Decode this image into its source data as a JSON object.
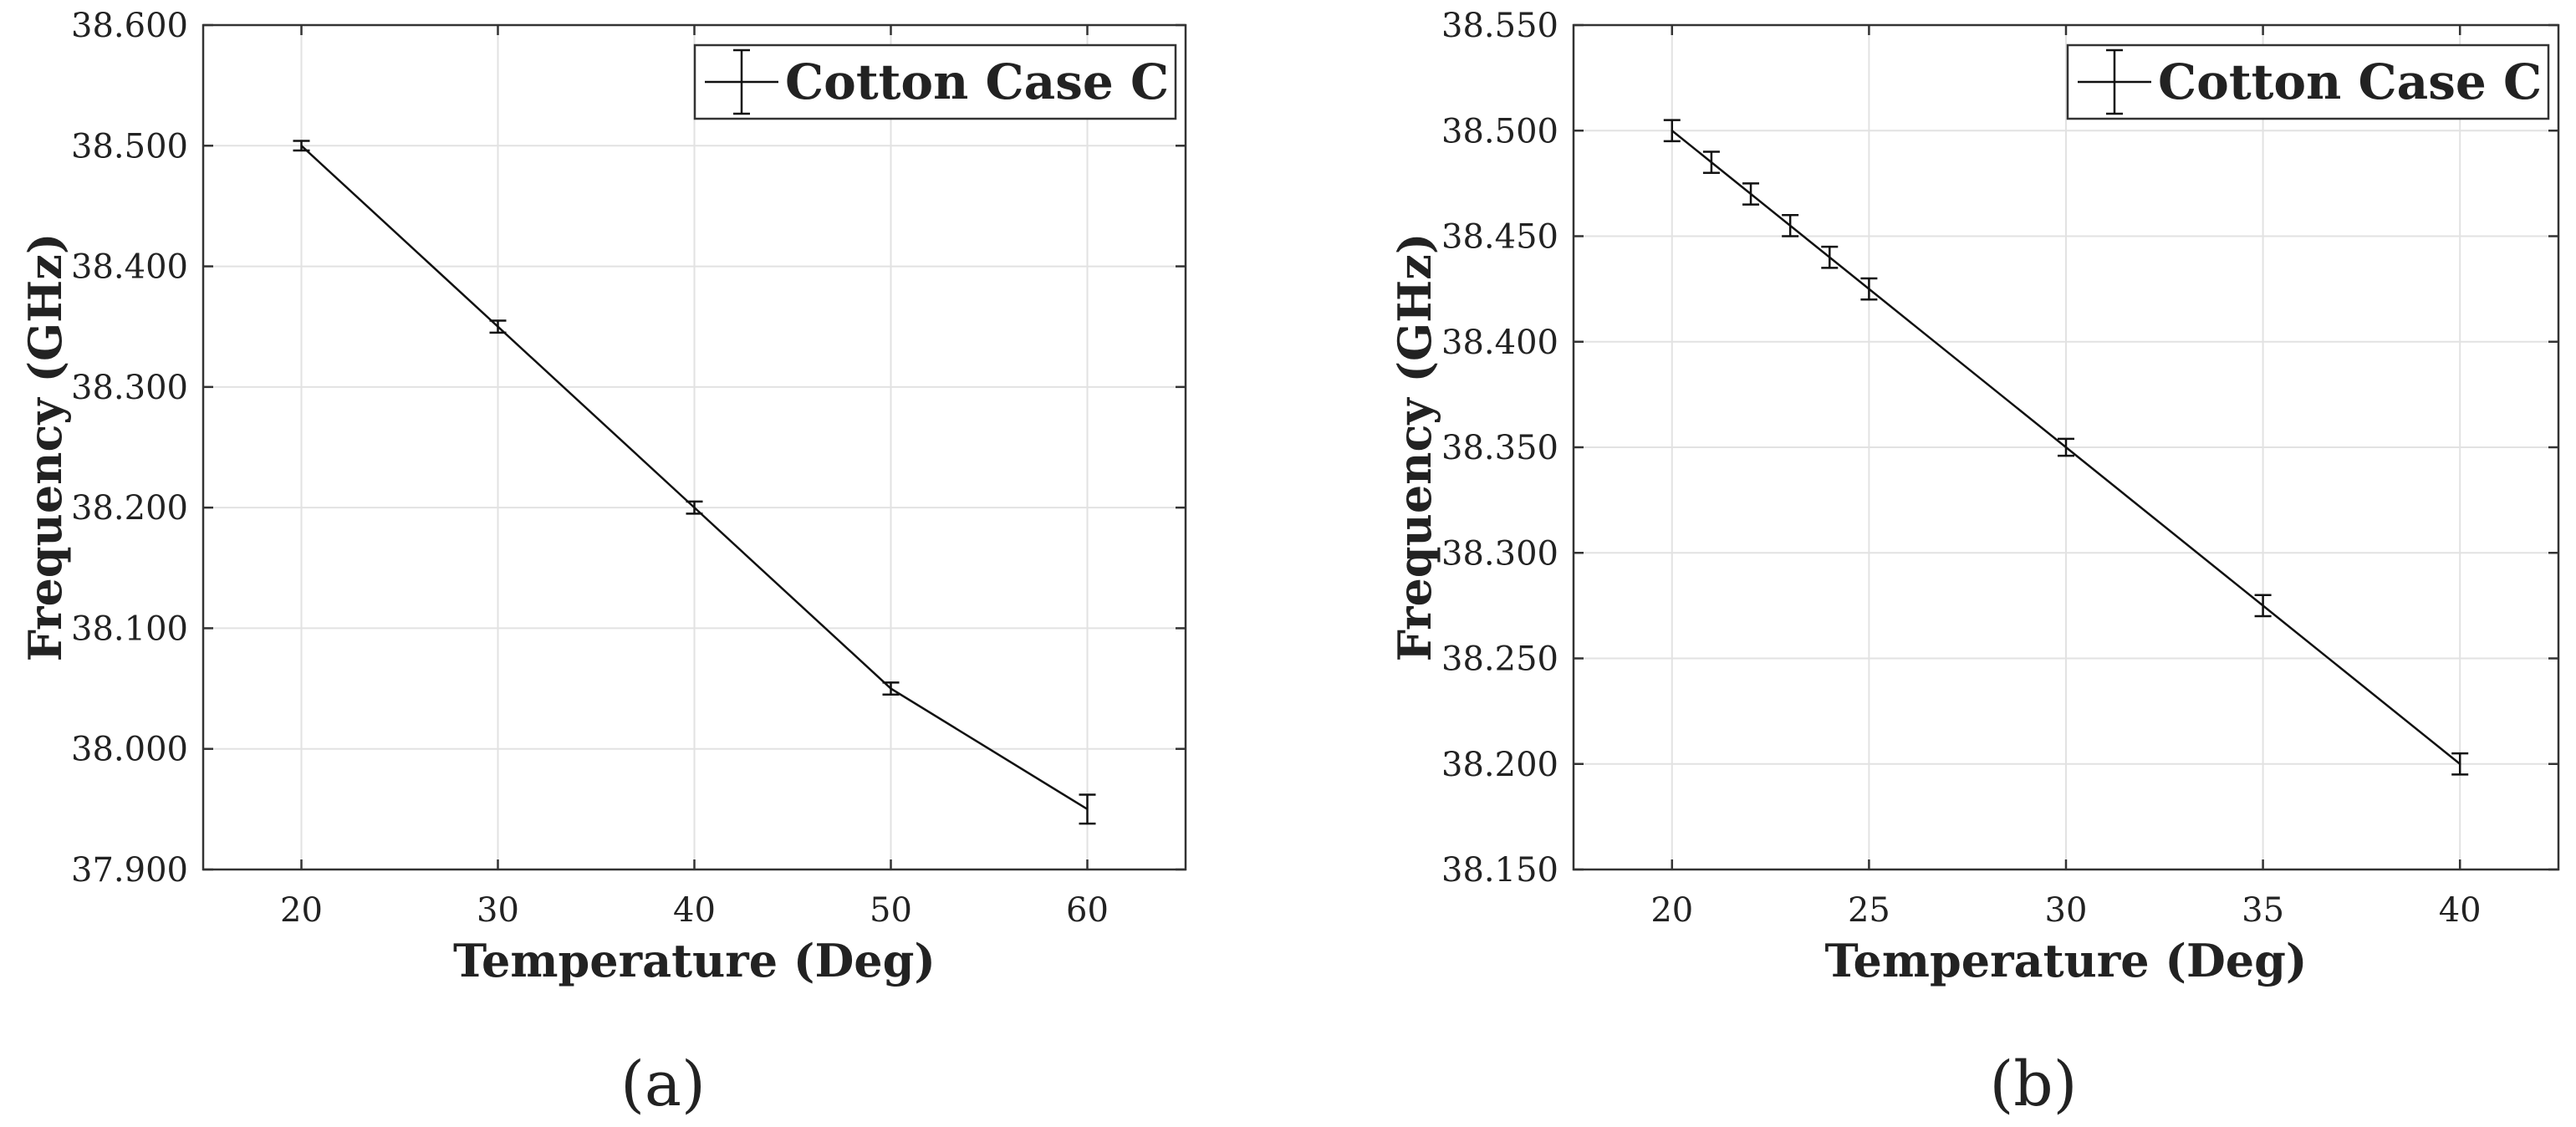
{
  "chart_data": [
    {
      "type": "line",
      "panel_label": "(a)",
      "xlabel": "Temperature (Deg)",
      "ylabel": "Frequency (GHz)",
      "xlim": [
        15,
        65
      ],
      "ylim": [
        37.9,
        38.6
      ],
      "xticks": [
        20,
        30,
        40,
        50,
        60
      ],
      "xtick_labels": [
        "20",
        "30",
        "40",
        "50",
        "60"
      ],
      "yticks": [
        37.9,
        38.0,
        38.1,
        38.2,
        38.3,
        38.4,
        38.5,
        38.6
      ],
      "ytick_labels": [
        "37.900",
        "38.000",
        "38.100",
        "38.200",
        "38.300",
        "38.400",
        "38.500",
        "38.600"
      ],
      "grid": true,
      "legend_position": "top-right",
      "series": [
        {
          "name": "Cotton Case C",
          "x": [
            20,
            30,
            40,
            50,
            60
          ],
          "y": [
            38.5,
            38.35,
            38.2,
            38.05,
            37.95
          ],
          "error": [
            0.004,
            0.005,
            0.005,
            0.005,
            0.012
          ]
        }
      ]
    },
    {
      "type": "line",
      "panel_label": "(b)",
      "xlabel": "Temperature (Deg)",
      "ylabel": "Frequency (GHz)",
      "xlim": [
        17.5,
        42.5
      ],
      "ylim": [
        38.15,
        38.55
      ],
      "xticks": [
        20,
        25,
        30,
        35,
        40
      ],
      "xtick_labels": [
        "20",
        "25",
        "30",
        "35",
        "40"
      ],
      "yticks": [
        38.15,
        38.2,
        38.25,
        38.3,
        38.35,
        38.4,
        38.45,
        38.5,
        38.55
      ],
      "ytick_labels": [
        "38.150",
        "38.200",
        "38.250",
        "38.300",
        "38.350",
        "38.400",
        "38.450",
        "38.500",
        "38.550"
      ],
      "grid": true,
      "legend_position": "top-right",
      "series": [
        {
          "name": "Cotton Case C",
          "x": [
            20,
            21,
            22,
            23,
            24,
            25,
            30,
            35,
            40
          ],
          "y": [
            38.5,
            38.485,
            38.47,
            38.455,
            38.44,
            38.425,
            38.35,
            38.275,
            38.2
          ],
          "error": [
            0.005,
            0.005,
            0.005,
            0.005,
            0.005,
            0.005,
            0.004,
            0.005,
            0.005
          ]
        }
      ]
    }
  ]
}
